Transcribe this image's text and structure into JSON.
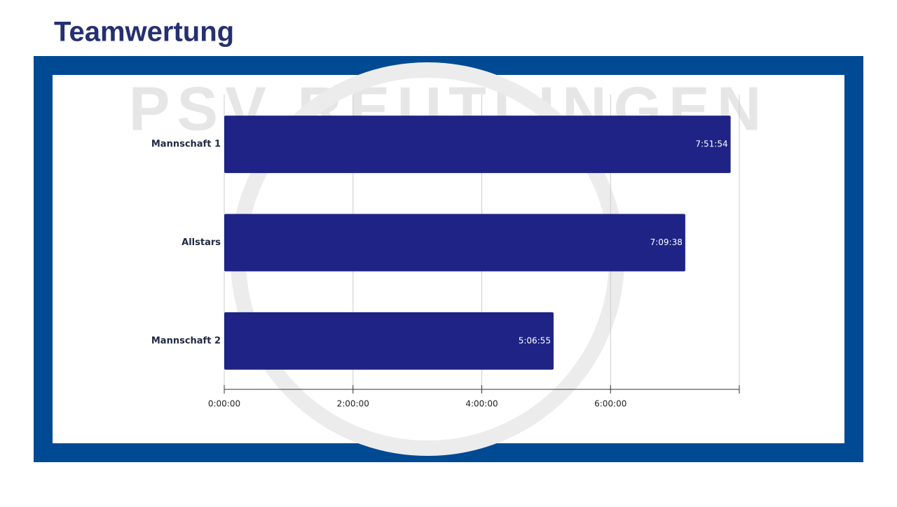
{
  "chart_data": {
    "type": "bar",
    "orientation": "horizontal",
    "title": "Teamwertung",
    "watermark": "PSV REUTLINGEN",
    "categories": [
      "Mannschaft 1",
      "Allstars",
      "Mannschaft 2"
    ],
    "values": [
      28314,
      25778,
      18415
    ],
    "value_labels": [
      "7:51:54",
      "7:09:38",
      "5:06:55"
    ],
    "color": "#1f2385",
    "xlim": [
      0,
      28800
    ],
    "xticks": [
      {
        "value": 0,
        "label": "0:00:00"
      },
      {
        "value": 7200,
        "label": "2:00:00"
      },
      {
        "value": 14400,
        "label": "4:00:00"
      },
      {
        "value": 21600,
        "label": "6:00:00"
      }
    ],
    "grid": true
  }
}
